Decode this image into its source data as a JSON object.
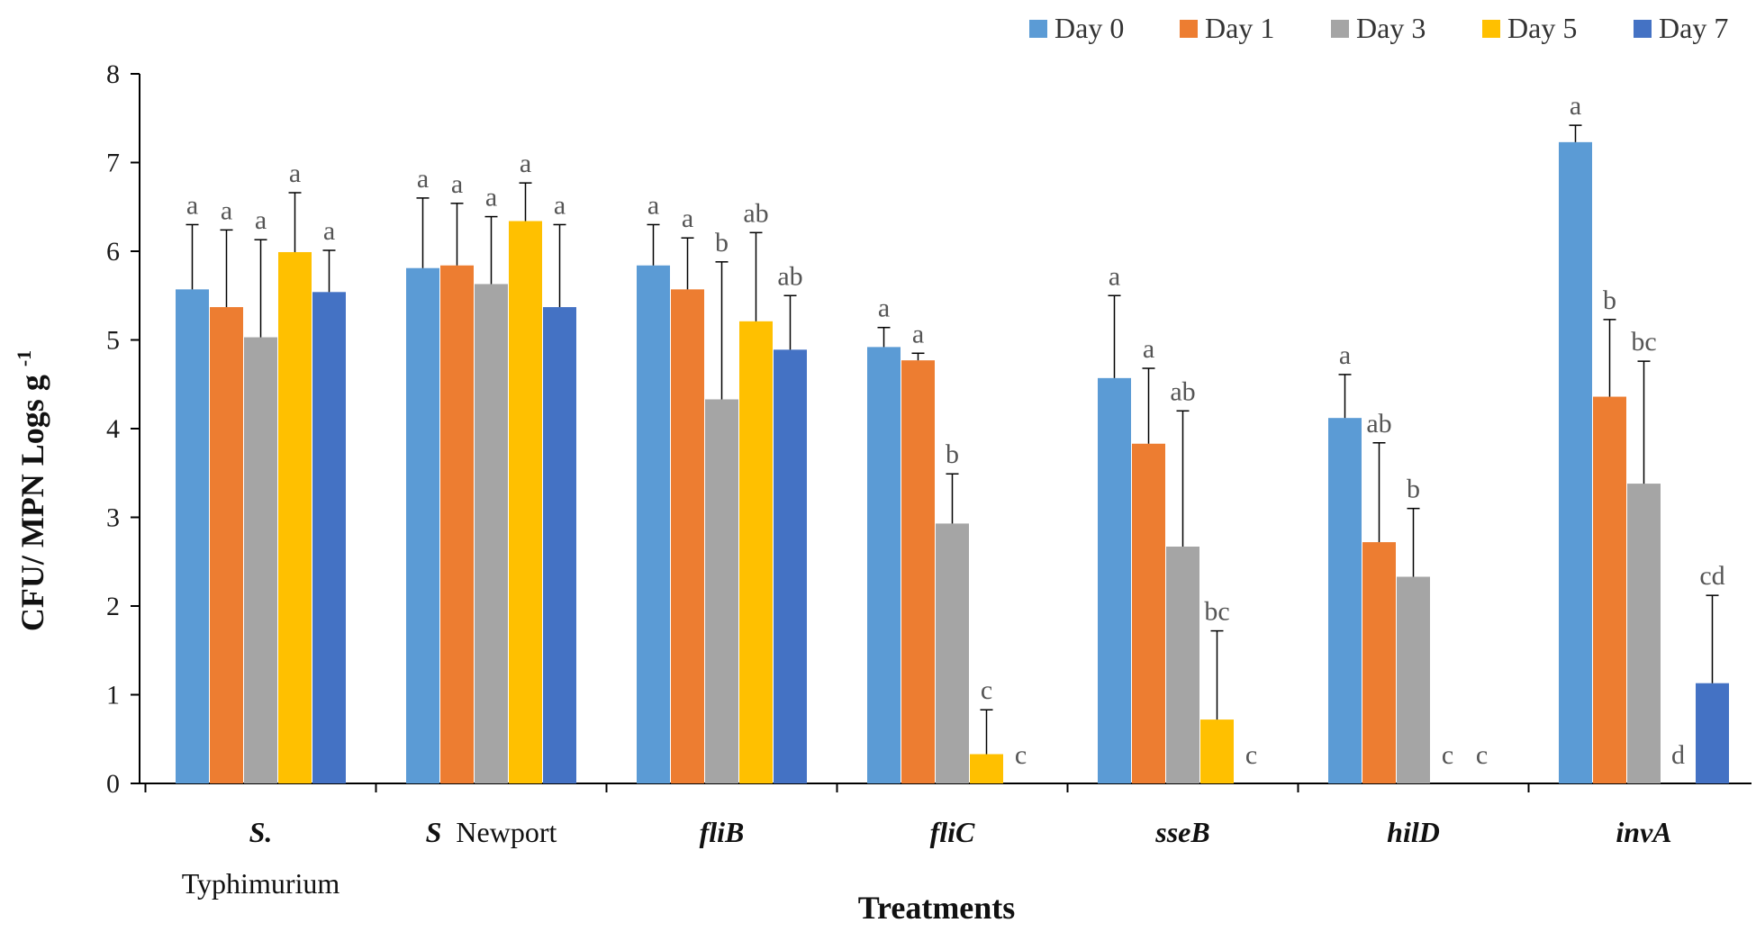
{
  "chart_data": {
    "type": "bar",
    "title": "",
    "xlabel": "Treatments",
    "ylabel_main": "CFU/ MPN Logs g",
    "ylabel_sup": "-1",
    "ylim": [
      0,
      8
    ],
    "yticks": [
      0,
      1,
      2,
      3,
      4,
      5,
      6,
      7,
      8
    ],
    "grid": false,
    "legend_position": "top-right",
    "categories": [
      {
        "prefix": "S.",
        "suffix": "Typhimurium"
      },
      {
        "prefix": "S",
        "suffix": "Newport"
      },
      {
        "prefix": "fliB",
        "suffix": ""
      },
      {
        "prefix": "fliC",
        "suffix": ""
      },
      {
        "prefix": "sseB",
        "suffix": ""
      },
      {
        "prefix": "hilD",
        "suffix": ""
      },
      {
        "prefix": "invA",
        "suffix": ""
      }
    ],
    "series": [
      {
        "name": "Day 0",
        "color": "#5B9BD5",
        "values": [
          5.57,
          5.81,
          5.84,
          4.92,
          4.57,
          4.12,
          7.23
        ],
        "errors": [
          0.73,
          0.79,
          0.46,
          0.22,
          0.93,
          0.49,
          0.19
        ],
        "letters": [
          "a",
          "a",
          "a",
          "a",
          "a",
          "a",
          "a"
        ]
      },
      {
        "name": "Day 1",
        "color": "#ED7D31",
        "values": [
          5.37,
          5.84,
          5.57,
          4.77,
          3.83,
          2.72,
          4.36
        ],
        "errors": [
          0.87,
          0.7,
          0.58,
          0.08,
          0.85,
          1.12,
          0.87
        ],
        "letters": [
          "a",
          "a",
          "a",
          "a",
          "a",
          "ab",
          "b"
        ]
      },
      {
        "name": "Day 3",
        "color": "#A5A5A5",
        "values": [
          5.03,
          5.63,
          4.33,
          2.93,
          2.67,
          2.33,
          3.38
        ],
        "errors": [
          1.1,
          0.76,
          1.55,
          0.56,
          1.53,
          0.77,
          1.38
        ],
        "letters": [
          "a",
          "a",
          "b",
          "b",
          "ab",
          "b",
          "bc"
        ]
      },
      {
        "name": "Day 5",
        "color": "#FFC000",
        "values": [
          5.99,
          6.34,
          5.21,
          0.33,
          0.72,
          0.0,
          0.0
        ],
        "errors": [
          0.67,
          0.43,
          1.0,
          0.5,
          1.0,
          0.0,
          0.0
        ],
        "letters": [
          "a",
          "a",
          "ab",
          "c",
          "bc",
          "c",
          "d"
        ]
      },
      {
        "name": "Day 7",
        "color": "#4472C4",
        "values": [
          5.54,
          5.37,
          4.89,
          0.0,
          0.0,
          0.0,
          1.13
        ],
        "errors": [
          0.47,
          0.93,
          0.61,
          0.0,
          0.0,
          0.0,
          0.99
        ],
        "letters": [
          "a",
          "a",
          "ab",
          "c",
          "c",
          "c",
          "cd"
        ]
      }
    ]
  }
}
